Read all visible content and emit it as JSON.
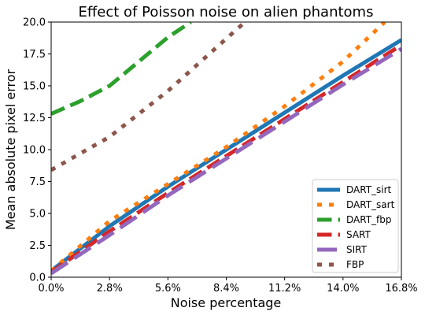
{
  "chart_data": {
    "type": "line",
    "title": "Effect of Poisson noise on alien phantoms",
    "xlabel": "Noise percentage",
    "ylabel": "Mean absolute pixel error",
    "xlim": [
      0,
      16.8
    ],
    "ylim": [
      0,
      20
    ],
    "x_ticks": [
      0,
      2.8,
      5.6,
      8.4,
      11.2,
      14.0,
      16.8
    ],
    "x_tick_labels": [
      "0.0%",
      "2.8%",
      "5.6%",
      "8.4%",
      "11.2%",
      "14.0%",
      "16.8%"
    ],
    "y_ticks": [
      0,
      2.5,
      5,
      7.5,
      10,
      12.5,
      15,
      17.5,
      20
    ],
    "y_tick_labels": [
      "0.0",
      "2.5",
      "5.0",
      "7.5",
      "10.0",
      "12.5",
      "15.0",
      "17.5",
      "20.0"
    ],
    "grid": false,
    "legend_position": "lower right",
    "series": [
      {
        "name": "DART_sirt",
        "color": "#1f77b4",
        "style": "solid",
        "x": [
          0,
          2.8,
          5.6,
          8.4,
          11.2,
          14.0,
          16.8
        ],
        "y": [
          0.5,
          4.0,
          7.1,
          10.0,
          12.9,
          15.8,
          18.6
        ]
      },
      {
        "name": "DART_sart",
        "color": "#ff7f0e",
        "style": "dotted",
        "x": [
          0,
          2.8,
          5.6,
          8.4,
          11.2,
          14.0,
          16.0
        ],
        "y": [
          0.5,
          4.4,
          7.3,
          10.2,
          13.4,
          16.9,
          20.0
        ]
      },
      {
        "name": "DART_fbp",
        "color": "#2ca02c",
        "style": "dashed",
        "x": [
          0,
          1.4,
          2.8,
          4.2,
          5.6,
          6.7
        ],
        "y": [
          12.8,
          13.8,
          15.0,
          16.9,
          18.8,
          20.0
        ]
      },
      {
        "name": "SART",
        "color": "#d62728",
        "style": "dashed",
        "x": [
          0,
          2.8,
          5.6,
          8.4,
          11.2,
          14.0,
          16.8
        ],
        "y": [
          0.4,
          3.6,
          6.6,
          9.5,
          12.4,
          15.3,
          18.2
        ]
      },
      {
        "name": "SIRT",
        "color": "#9467bd",
        "style": "longdash",
        "x": [
          0,
          2.8,
          5.6,
          8.4,
          11.2,
          14.0,
          16.8
        ],
        "y": [
          0.3,
          3.3,
          6.4,
          9.3,
          12.2,
          15.1,
          17.9
        ]
      },
      {
        "name": "FBP",
        "color": "#8c564b",
        "style": "dotted",
        "x": [
          0,
          2.8,
          5.6,
          8.4,
          9.3
        ],
        "y": [
          8.4,
          11.0,
          14.6,
          18.7,
          20.0
        ]
      }
    ]
  }
}
